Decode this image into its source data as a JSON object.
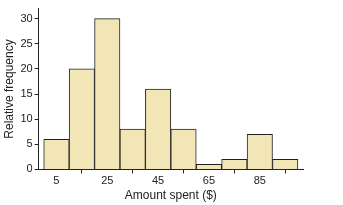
{
  "chart_data": {
    "type": "histogram",
    "xlabel": "Amount spent ($)",
    "ylabel": "Relative frequency",
    "bins": [
      0,
      10,
      20,
      30,
      40,
      50,
      60,
      70,
      80,
      90,
      100
    ],
    "values": [
      6,
      20,
      30,
      8,
      16,
      8,
      1,
      2,
      7,
      2
    ],
    "color": "#f3e6b6",
    "xlim": [
      -2,
      102
    ],
    "xticks": [
      5,
      25,
      45,
      65,
      85
    ],
    "ylim": [
      0,
      32
    ],
    "yticks": [
      0,
      5,
      10,
      15,
      20,
      25,
      30
    ],
    "grid": false
  }
}
